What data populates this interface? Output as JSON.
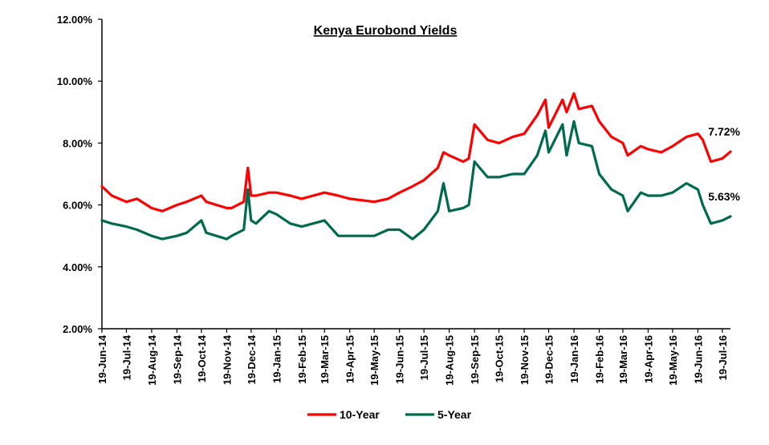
{
  "chart_data": {
    "type": "line",
    "title": "Kenya Eurobond Yields",
    "xlabel": "",
    "ylabel": "",
    "ylim": [
      0.02,
      0.12
    ],
    "y_ticks": [
      "2.00%",
      "4.00%",
      "6.00%",
      "8.00%",
      "10.00%",
      "12.00%"
    ],
    "y_tick_values": [
      0.02,
      0.04,
      0.06,
      0.08,
      0.1,
      0.12
    ],
    "x_start": "2014-06-19",
    "x_end": "2016-07-29",
    "x_ticks": [
      "19-Jun-14",
      "19-Jul-14",
      "19-Aug-14",
      "19-Sep-14",
      "19-Oct-14",
      "19-Nov-14",
      "19-Dec-14",
      "19-Jan-15",
      "19-Feb-15",
      "19-Mar-15",
      "19-Apr-15",
      "19-May-15",
      "19-Jun-15",
      "19-Jul-15",
      "19-Aug-15",
      "19-Sep-15",
      "19-Oct-15",
      "19-Nov-15",
      "19-Dec-15",
      "19-Jan-16",
      "19-Feb-16",
      "19-Mar-16",
      "19-Apr-16",
      "19-May-16",
      "19-Jun-16",
      "19-Jul-16"
    ],
    "x_tick_dates": [
      "2014-06-19",
      "2014-07-19",
      "2014-08-19",
      "2014-09-19",
      "2014-10-19",
      "2014-11-19",
      "2014-12-19",
      "2015-01-19",
      "2015-02-19",
      "2015-03-19",
      "2015-04-19",
      "2015-05-19",
      "2015-06-19",
      "2015-07-19",
      "2015-08-19",
      "2015-09-19",
      "2015-10-19",
      "2015-11-19",
      "2015-12-19",
      "2016-01-19",
      "2016-02-19",
      "2016-03-19",
      "2016-04-19",
      "2016-05-19",
      "2016-06-19",
      "2016-07-19"
    ],
    "grid": false,
    "legend_position": "bottom",
    "series": [
      {
        "name": "10-Year",
        "color": "#ff0000",
        "end_label": "7.72%",
        "x": [
          "2014-06-19",
          "2014-07-01",
          "2014-07-19",
          "2014-08-01",
          "2014-08-19",
          "2014-09-01",
          "2014-09-19",
          "2014-10-01",
          "2014-10-19",
          "2014-10-25",
          "2014-11-19",
          "2014-11-25",
          "2014-12-10",
          "2014-12-15",
          "2014-12-19",
          "2014-12-25",
          "2015-01-10",
          "2015-01-19",
          "2015-02-05",
          "2015-02-19",
          "2015-03-19",
          "2015-04-05",
          "2015-04-19",
          "2015-05-19",
          "2015-06-05",
          "2015-06-19",
          "2015-07-05",
          "2015-07-19",
          "2015-08-05",
          "2015-08-12",
          "2015-08-19",
          "2015-09-05",
          "2015-09-12",
          "2015-09-19",
          "2015-10-05",
          "2015-10-19",
          "2015-11-05",
          "2015-11-19",
          "2015-12-05",
          "2015-12-15",
          "2015-12-19",
          "2016-01-05",
          "2016-01-10",
          "2016-01-19",
          "2016-01-25",
          "2016-02-10",
          "2016-02-19",
          "2016-03-05",
          "2016-03-19",
          "2016-03-25",
          "2016-04-10",
          "2016-04-19",
          "2016-05-05",
          "2016-05-19",
          "2016-06-05",
          "2016-06-19",
          "2016-06-25",
          "2016-07-05",
          "2016-07-19",
          "2016-07-29"
        ],
        "values": [
          0.066,
          0.063,
          0.061,
          0.062,
          0.059,
          0.058,
          0.06,
          0.061,
          0.063,
          0.061,
          0.059,
          0.059,
          0.061,
          0.072,
          0.063,
          0.063,
          0.064,
          0.064,
          0.063,
          0.062,
          0.064,
          0.063,
          0.062,
          0.061,
          0.062,
          0.064,
          0.066,
          0.068,
          0.072,
          0.077,
          0.076,
          0.074,
          0.075,
          0.086,
          0.081,
          0.08,
          0.082,
          0.083,
          0.089,
          0.094,
          0.085,
          0.094,
          0.09,
          0.096,
          0.091,
          0.092,
          0.087,
          0.082,
          0.08,
          0.076,
          0.079,
          0.078,
          0.077,
          0.079,
          0.082,
          0.083,
          0.081,
          0.074,
          0.075,
          0.0772
        ]
      },
      {
        "name": "5-Year",
        "color": "#006a4e",
        "end_label": "5.63%",
        "x": [
          "2014-06-19",
          "2014-07-01",
          "2014-07-19",
          "2014-08-01",
          "2014-08-19",
          "2014-09-01",
          "2014-09-19",
          "2014-10-01",
          "2014-10-19",
          "2014-10-25",
          "2014-11-19",
          "2014-11-25",
          "2014-12-10",
          "2014-12-15",
          "2014-12-19",
          "2014-12-25",
          "2015-01-10",
          "2015-01-19",
          "2015-02-05",
          "2015-02-19",
          "2015-03-19",
          "2015-04-05",
          "2015-04-19",
          "2015-05-19",
          "2015-06-05",
          "2015-06-19",
          "2015-07-05",
          "2015-07-19",
          "2015-08-05",
          "2015-08-12",
          "2015-08-19",
          "2015-09-05",
          "2015-09-12",
          "2015-09-19",
          "2015-10-05",
          "2015-10-19",
          "2015-11-05",
          "2015-11-19",
          "2015-12-05",
          "2015-12-15",
          "2015-12-19",
          "2016-01-05",
          "2016-01-10",
          "2016-01-19",
          "2016-01-25",
          "2016-02-10",
          "2016-02-19",
          "2016-03-05",
          "2016-03-19",
          "2016-03-25",
          "2016-04-10",
          "2016-04-19",
          "2016-05-05",
          "2016-05-19",
          "2016-06-05",
          "2016-06-19",
          "2016-06-25",
          "2016-07-05",
          "2016-07-19",
          "2016-07-29"
        ],
        "values": [
          0.055,
          0.054,
          0.053,
          0.052,
          0.05,
          0.049,
          0.05,
          0.051,
          0.055,
          0.051,
          0.049,
          0.05,
          0.052,
          0.065,
          0.055,
          0.054,
          0.058,
          0.057,
          0.054,
          0.053,
          0.055,
          0.05,
          0.05,
          0.05,
          0.052,
          0.052,
          0.049,
          0.052,
          0.058,
          0.067,
          0.058,
          0.059,
          0.06,
          0.074,
          0.069,
          0.069,
          0.07,
          0.07,
          0.076,
          0.084,
          0.077,
          0.086,
          0.076,
          0.087,
          0.08,
          0.079,
          0.07,
          0.065,
          0.063,
          0.058,
          0.064,
          0.063,
          0.063,
          0.064,
          0.067,
          0.065,
          0.06,
          0.054,
          0.055,
          0.0563
        ]
      }
    ]
  }
}
